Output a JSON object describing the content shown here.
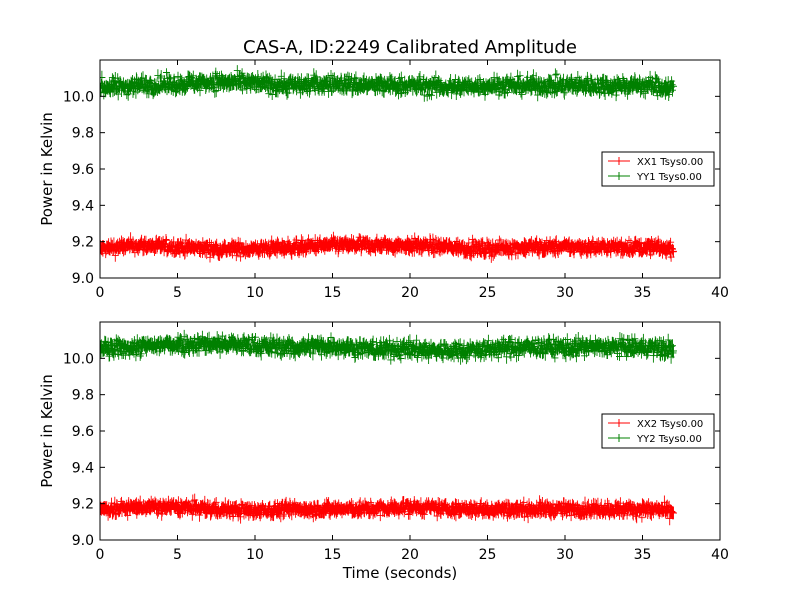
{
  "title": "CAS-A, ID:2249 Calibrated Amplitude",
  "chart_data": [
    {
      "type": "scatter",
      "marker": "+",
      "ylabel": "Power in Kelvin",
      "xlabel": "",
      "xlim": [
        0,
        40
      ],
      "ylim": [
        9.0,
        10.2
      ],
      "xticks": [
        "0",
        "5",
        "10",
        "15",
        "20",
        "25",
        "30",
        "35",
        "40"
      ],
      "yticks": [
        "9.0",
        "9.2",
        "9.4",
        "9.6",
        "9.8",
        "10.0"
      ],
      "legend_position": "center-right",
      "x_range": [
        0,
        37
      ],
      "series": [
        {
          "name": "XX1 Tsys0.00",
          "color": "#ff0000",
          "x": [
            0,
            2.5,
            5,
            7.5,
            10,
            12.5,
            15,
            17.5,
            20,
            22.5,
            25,
            27.5,
            30,
            32.5,
            35,
            37
          ],
          "y": [
            9.16,
            9.18,
            9.17,
            9.16,
            9.16,
            9.17,
            9.18,
            9.18,
            9.18,
            9.17,
            9.16,
            9.17,
            9.17,
            9.17,
            9.17,
            9.16
          ],
          "spread": 0.03
        },
        {
          "name": "YY1 Tsys0.00",
          "color": "#008000",
          "x": [
            0,
            2.5,
            5,
            7.5,
            10,
            12.5,
            15,
            17.5,
            20,
            22.5,
            25,
            27.5,
            30,
            32.5,
            35,
            37
          ],
          "y": [
            10.05,
            10.06,
            10.07,
            10.08,
            10.07,
            10.06,
            10.07,
            10.06,
            10.06,
            10.05,
            10.06,
            10.06,
            10.06,
            10.06,
            10.06,
            10.05
          ],
          "spread": 0.04
        }
      ]
    },
    {
      "type": "scatter",
      "marker": "+",
      "ylabel": "Power in Kelvin",
      "xlabel": "Time (seconds)",
      "xlim": [
        0,
        40
      ],
      "ylim": [
        9.0,
        10.2
      ],
      "xticks": [
        "0",
        "5",
        "10",
        "15",
        "20",
        "25",
        "30",
        "35",
        "40"
      ],
      "yticks": [
        "9.0",
        "9.2",
        "9.4",
        "9.6",
        "9.8",
        "10.0"
      ],
      "legend_position": "center-right",
      "x_range": [
        0,
        37
      ],
      "series": [
        {
          "name": "XX2 Tsys0.00",
          "color": "#ff0000",
          "x": [
            0,
            2.5,
            5,
            7.5,
            10,
            12.5,
            15,
            17.5,
            20,
            22.5,
            25,
            27.5,
            30,
            32.5,
            35,
            37
          ],
          "y": [
            9.17,
            9.18,
            9.18,
            9.17,
            9.16,
            9.17,
            9.17,
            9.17,
            9.18,
            9.17,
            9.17,
            9.17,
            9.17,
            9.17,
            9.17,
            9.16
          ],
          "spread": 0.03
        },
        {
          "name": "YY2 Tsys0.00",
          "color": "#008000",
          "x": [
            0,
            2.5,
            5,
            7.5,
            10,
            12.5,
            15,
            17.5,
            20,
            22.5,
            25,
            27.5,
            30,
            32.5,
            35,
            37
          ],
          "y": [
            10.05,
            10.06,
            10.08,
            10.08,
            10.07,
            10.06,
            10.07,
            10.05,
            10.05,
            10.04,
            10.05,
            10.06,
            10.06,
            10.06,
            10.06,
            10.05
          ],
          "spread": 0.04
        }
      ]
    }
  ]
}
